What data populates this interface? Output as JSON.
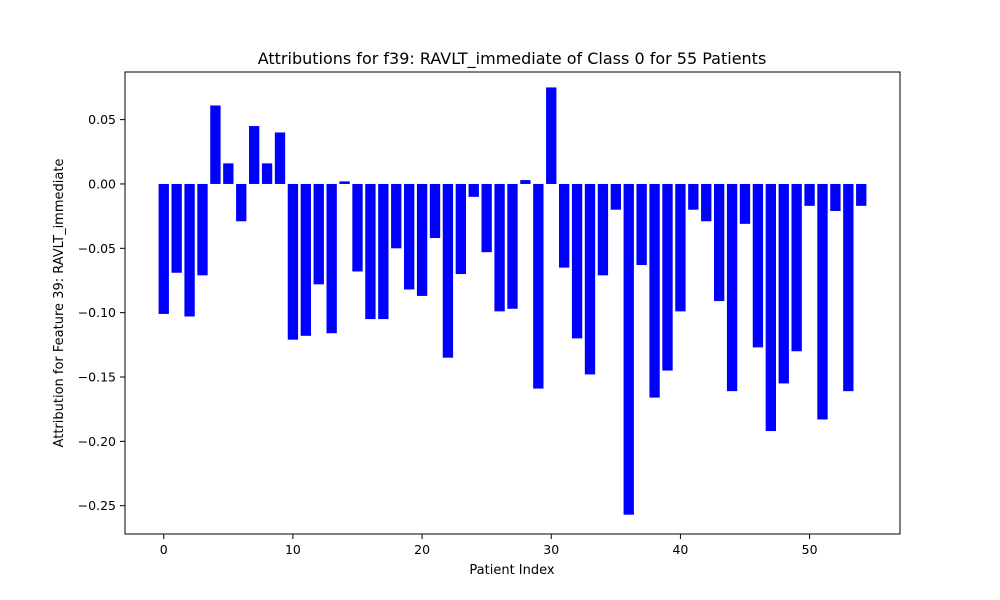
{
  "chart_data": {
    "type": "bar",
    "title": "Attributions for f39: RAVLT_immediate of Class 0 for 55 Patients",
    "xlabel": "Patient Index",
    "ylabel": "Attribution for Feature 39: RAVLT_immediate",
    "xlim": [
      -3,
      57
    ],
    "ylim": [
      -0.272,
      0.087
    ],
    "xticks": [
      0,
      10,
      20,
      30,
      40,
      50
    ],
    "yticks": [
      -0.25,
      -0.2,
      -0.15,
      -0.1,
      -0.05,
      0.0,
      0.05
    ],
    "ytick_labels": [
      "−0.25",
      "−0.20",
      "−0.15",
      "−0.10",
      "−0.05",
      "0.00",
      "0.05"
    ],
    "bar_color": "#0000ff",
    "grid": false,
    "x": [
      0,
      1,
      2,
      3,
      4,
      5,
      6,
      7,
      8,
      9,
      10,
      11,
      12,
      13,
      14,
      15,
      16,
      17,
      18,
      19,
      20,
      21,
      22,
      23,
      24,
      25,
      26,
      27,
      28,
      29,
      30,
      31,
      32,
      33,
      34,
      35,
      36,
      37,
      38,
      39,
      40,
      41,
      42,
      43,
      44,
      45,
      46,
      47,
      48,
      49,
      50,
      51,
      52,
      53,
      54
    ],
    "values": [
      -0.101,
      -0.069,
      -0.103,
      -0.071,
      0.061,
      0.016,
      -0.029,
      0.045,
      0.016,
      0.04,
      -0.121,
      -0.118,
      -0.078,
      -0.116,
      0.002,
      -0.068,
      -0.105,
      -0.105,
      -0.05,
      -0.082,
      -0.087,
      -0.042,
      -0.135,
      -0.07,
      -0.01,
      -0.053,
      -0.099,
      -0.097,
      0.003,
      -0.159,
      0.075,
      -0.065,
      -0.12,
      -0.148,
      -0.071,
      -0.02,
      -0.257,
      -0.063,
      -0.166,
      -0.145,
      -0.099,
      -0.02,
      -0.029,
      -0.091,
      -0.161,
      -0.031,
      -0.127,
      -0.192,
      -0.155,
      -0.13,
      -0.017,
      -0.183,
      -0.021,
      -0.161,
      -0.017
    ]
  }
}
